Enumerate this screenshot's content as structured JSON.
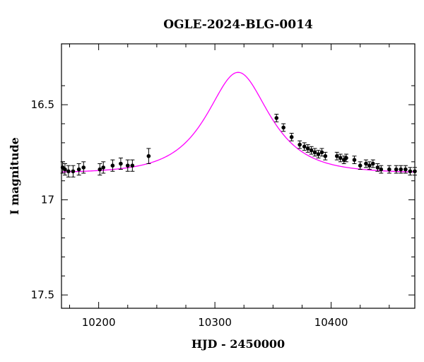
{
  "chart_data": {
    "type": "scatter",
    "title": "OGLE-2024-BLG-0014",
    "xlabel": "HJD - 2450000",
    "ylabel": "I magnitude",
    "xlim": [
      10168,
      10472
    ],
    "ylim": [
      17.57,
      16.18
    ],
    "y_inverted": true,
    "x_ticks": [
      10200,
      10300,
      10400
    ],
    "y_ticks": [
      16.5,
      17,
      17.5
    ],
    "x_tick_labels": [
      "10200",
      "10300",
      "10400"
    ],
    "y_tick_labels": [
      "16.5",
      "17",
      "17.5"
    ],
    "grid": false,
    "colors": {
      "model": "#ff00ff",
      "points": "#000000",
      "axes": "#000000"
    },
    "model": {
      "type": "paczynski",
      "t0": 10320,
      "tE": 38,
      "u0": 0.73,
      "baseline_mag": 16.86,
      "blending_fs": 1.0
    },
    "series": [
      {
        "x": [
          10169,
          10171,
          10174,
          10178,
          10183,
          10187,
          10201,
          10204,
          10212,
          10219,
          10225,
          10229,
          10243,
          10353,
          10359,
          10366,
          10373,
          10377,
          10380,
          10383,
          10386,
          10389,
          10392,
          10395,
          10405,
          10408,
          10411,
          10413,
          10420,
          10425,
          10430,
          10433,
          10436,
          10440,
          10443,
          10450,
          10456,
          10460,
          10464,
          10468,
          10472
        ],
        "y": [
          16.83,
          16.84,
          16.85,
          16.85,
          16.84,
          16.83,
          16.84,
          16.83,
          16.82,
          16.81,
          16.82,
          16.82,
          16.77,
          16.57,
          16.62,
          16.67,
          16.71,
          16.72,
          16.73,
          16.74,
          16.75,
          16.76,
          16.75,
          16.77,
          16.77,
          16.78,
          16.79,
          16.78,
          16.79,
          16.82,
          16.81,
          16.82,
          16.81,
          16.83,
          16.84,
          16.84,
          16.84,
          16.84,
          16.84,
          16.85,
          16.85
        ],
        "yerr": [
          0.03,
          0.03,
          0.03,
          0.03,
          0.03,
          0.03,
          0.03,
          0.03,
          0.03,
          0.03,
          0.03,
          0.03,
          0.04,
          0.02,
          0.02,
          0.02,
          0.02,
          0.02,
          0.02,
          0.02,
          0.02,
          0.02,
          0.02,
          0.02,
          0.02,
          0.02,
          0.02,
          0.02,
          0.02,
          0.02,
          0.02,
          0.02,
          0.02,
          0.02,
          0.02,
          0.02,
          0.02,
          0.02,
          0.02,
          0.02,
          0.02
        ]
      }
    ]
  }
}
